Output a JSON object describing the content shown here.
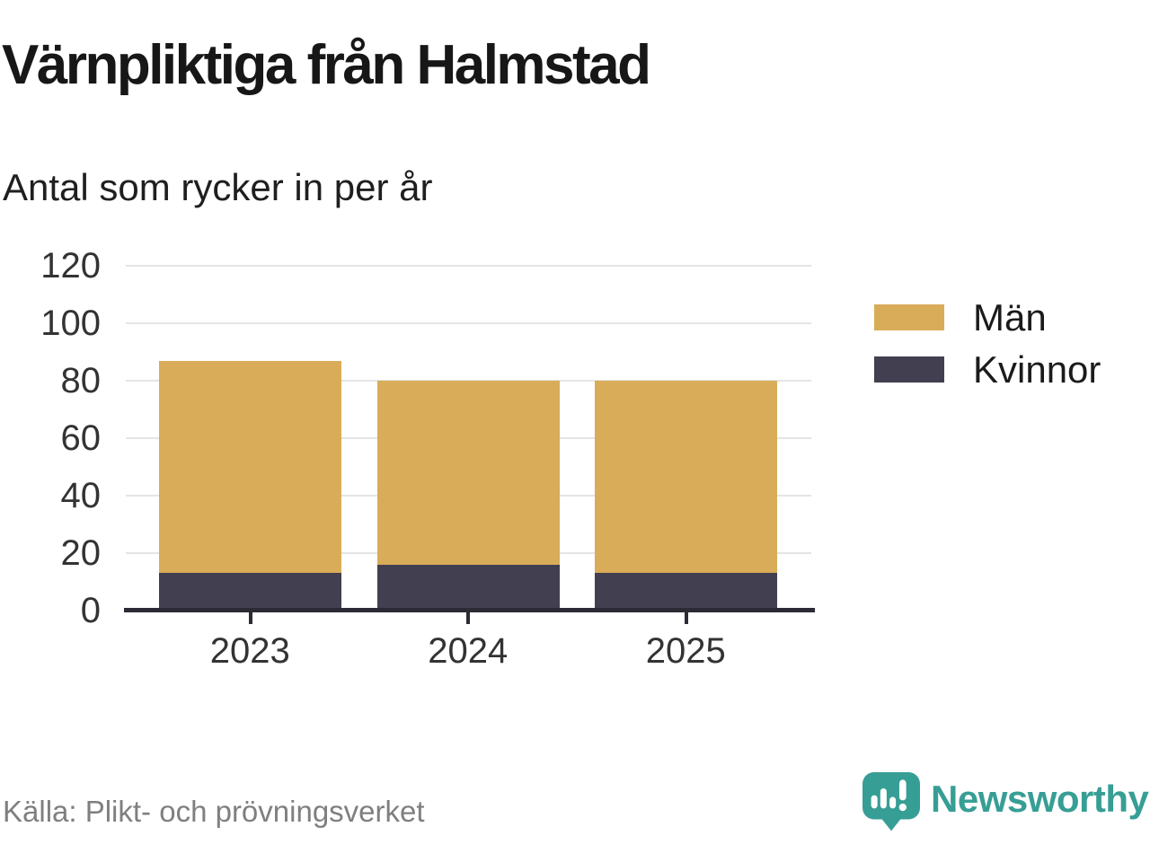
{
  "header": {
    "title": "Värnpliktiga från Halmstad",
    "subtitle": "Antal som rycker in per år"
  },
  "footer": {
    "source": "Källa: Plikt- och prövningsverket"
  },
  "brand": {
    "name": "Newsworthy",
    "color": "#379e95",
    "icon": "newsworthy-speech-bubble-chart-icon"
  },
  "colors": {
    "man_gold": "#d9ac59",
    "kvinnor_dark": "#413f50",
    "axis": "#2c2b35",
    "grid": "#e4e4e4",
    "tick_text": "#333333",
    "title_text": "#171717",
    "source_text": "#7f7f7f"
  },
  "chart_data": {
    "type": "bar",
    "stacked": true,
    "title": "Värnpliktiga från Halmstad",
    "subtitle": "Antal som rycker in per år",
    "categories": [
      "2023",
      "2024",
      "2025"
    ],
    "series": [
      {
        "name": "Män",
        "color": "#d9ac59",
        "values": [
          74,
          64,
          67
        ]
      },
      {
        "name": "Kvinnor",
        "color": "#413f50",
        "values": [
          13,
          16,
          13
        ]
      }
    ],
    "stack_order_bottom_to_top": [
      "Kvinnor",
      "Män"
    ],
    "totals": [
      87,
      80,
      80
    ],
    "xlabel": "",
    "ylabel": "",
    "ylim": [
      0,
      120
    ],
    "yticks": [
      0,
      20,
      40,
      60,
      80,
      100,
      120
    ],
    "grid": "horizontal",
    "legend_position": "right",
    "legend": [
      "Män",
      "Kvinnor"
    ]
  }
}
